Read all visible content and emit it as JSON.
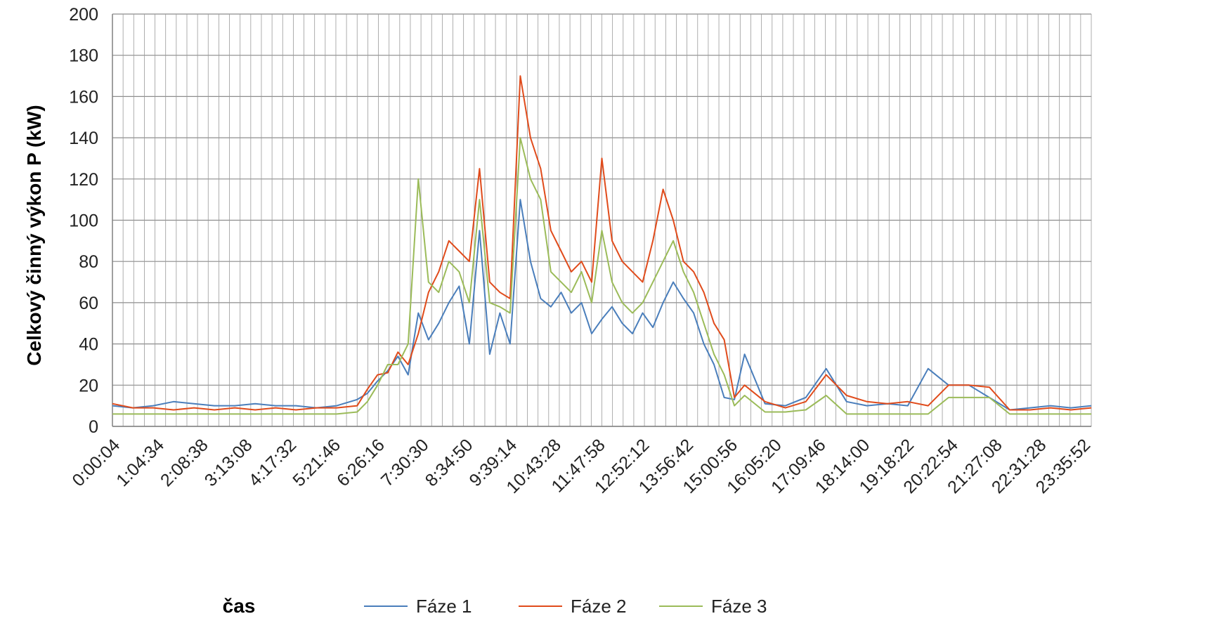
{
  "chart_data": {
    "type": "line",
    "title": "",
    "xlabel": "čas",
    "ylabel": "Celkový činný výkon P (kW)",
    "ylim": [
      0,
      200
    ],
    "y_ticks": [
      0,
      20,
      40,
      60,
      80,
      100,
      120,
      140,
      160,
      180,
      200
    ],
    "x_tick_labels": [
      "0:00:04",
      "1:04:34",
      "2:08:38",
      "3:13:08",
      "4:17:32",
      "5:21:46",
      "6:26:16",
      "7:30:30",
      "8:34:50",
      "9:39:14",
      "10:43:28",
      "11:47:58",
      "12:52:12",
      "13:56:42",
      "15:00:56",
      "16:05:20",
      "17:09:46",
      "18:14:00",
      "19:18:22",
      "20:22:54",
      "21:27:08",
      "22:31:28",
      "23:35:52"
    ],
    "x_range_hours": [
      0,
      24
    ],
    "grid": true,
    "legend_position": "bottom",
    "series": [
      {
        "name": "Fáze 1",
        "color": "#4a7ebb",
        "x": [
          0,
          0.5,
          1,
          1.5,
          2,
          2.5,
          3,
          3.5,
          4,
          4.5,
          5,
          5.5,
          6,
          6.25,
          6.5,
          6.75,
          7,
          7.25,
          7.5,
          7.75,
          8,
          8.25,
          8.5,
          8.75,
          9,
          9.25,
          9.5,
          9.75,
          10,
          10.25,
          10.5,
          10.75,
          11,
          11.25,
          11.5,
          11.75,
          12,
          12.25,
          12.5,
          12.75,
          13,
          13.25,
          13.5,
          13.75,
          14,
          14.25,
          14.5,
          14.75,
          15,
          15.25,
          15.5,
          16,
          16.5,
          17,
          17.5,
          18,
          18.5,
          19,
          19.5,
          20,
          20.5,
          21,
          21.5,
          22,
          22.5,
          23,
          23.5,
          24
        ],
        "values": [
          10,
          9,
          10,
          12,
          11,
          10,
          10,
          11,
          10,
          10,
          9,
          10,
          13,
          16,
          22,
          27,
          34,
          25,
          55,
          42,
          50,
          60,
          68,
          40,
          95,
          35,
          55,
          40,
          110,
          80,
          62,
          58,
          65,
          55,
          60,
          45,
          52,
          58,
          50,
          45,
          55,
          48,
          60,
          70,
          62,
          55,
          40,
          30,
          14,
          13,
          35,
          11,
          10,
          14,
          28,
          12,
          10,
          11,
          10,
          28,
          20,
          20,
          14,
          8,
          9,
          10,
          9,
          10
        ]
      },
      {
        "name": "Fáze 2",
        "color": "#e04b1b",
        "x": [
          0,
          0.5,
          1,
          1.5,
          2,
          2.5,
          3,
          3.5,
          4,
          4.5,
          5,
          5.5,
          6,
          6.25,
          6.5,
          6.75,
          7,
          7.25,
          7.5,
          7.75,
          8,
          8.25,
          8.5,
          8.75,
          9,
          9.25,
          9.5,
          9.75,
          10,
          10.25,
          10.5,
          10.75,
          11,
          11.25,
          11.5,
          11.75,
          12,
          12.25,
          12.5,
          12.75,
          13,
          13.25,
          13.5,
          13.75,
          14,
          14.25,
          14.5,
          14.75,
          15,
          15.25,
          15.5,
          16,
          16.5,
          17,
          17.5,
          18,
          18.5,
          19,
          19.5,
          20,
          20.5,
          21,
          21.5,
          22,
          22.5,
          23,
          23.5,
          24
        ],
        "values": [
          11,
          9,
          9,
          8,
          9,
          8,
          9,
          8,
          9,
          8,
          9,
          9,
          10,
          18,
          25,
          26,
          36,
          30,
          45,
          65,
          75,
          90,
          85,
          80,
          125,
          70,
          65,
          62,
          170,
          140,
          125,
          95,
          85,
          75,
          80,
          70,
          130,
          90,
          80,
          75,
          70,
          90,
          115,
          100,
          80,
          75,
          65,
          50,
          42,
          14,
          20,
          12,
          9,
          12,
          25,
          15,
          12,
          11,
          12,
          10,
          20,
          20,
          19,
          8,
          8,
          9,
          8,
          9
        ]
      },
      {
        "name": "Fáze 3",
        "color": "#9bbb59",
        "x": [
          0,
          0.5,
          1,
          1.5,
          2,
          2.5,
          3,
          3.5,
          4,
          4.5,
          5,
          5.5,
          6,
          6.25,
          6.5,
          6.75,
          7,
          7.25,
          7.5,
          7.75,
          8,
          8.25,
          8.5,
          8.75,
          9,
          9.25,
          9.5,
          9.75,
          10,
          10.25,
          10.5,
          10.75,
          11,
          11.25,
          11.5,
          11.75,
          12,
          12.25,
          12.5,
          12.75,
          13,
          13.25,
          13.5,
          13.75,
          14,
          14.25,
          14.5,
          14.75,
          15,
          15.25,
          15.5,
          16,
          16.5,
          17,
          17.5,
          18,
          18.5,
          19,
          19.5,
          20,
          20.5,
          21,
          21.5,
          22,
          22.5,
          23,
          23.5,
          24
        ],
        "values": [
          6,
          6,
          6,
          6,
          6,
          6,
          6,
          6,
          6,
          6,
          6,
          6,
          7,
          12,
          20,
          30,
          30,
          40,
          120,
          70,
          65,
          80,
          75,
          60,
          110,
          60,
          58,
          55,
          140,
          120,
          110,
          75,
          70,
          65,
          75,
          60,
          95,
          70,
          60,
          55,
          60,
          70,
          80,
          90,
          75,
          65,
          50,
          35,
          25,
          10,
          15,
          7,
          7,
          8,
          15,
          6,
          6,
          6,
          6,
          6,
          14,
          14,
          14,
          6,
          6,
          6,
          6,
          6
        ]
      }
    ]
  }
}
